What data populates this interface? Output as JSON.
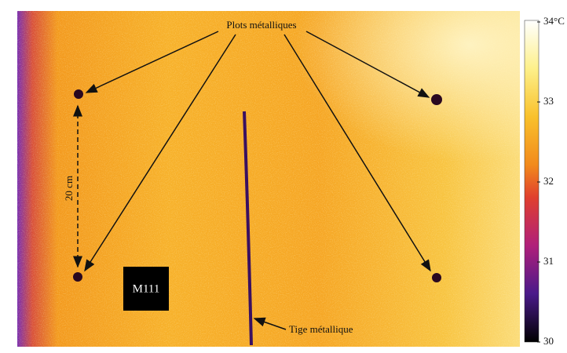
{
  "annotations": {
    "plots": "Plots métalliques",
    "distance": "20 cm",
    "sample": "M111",
    "rod": "Tige métallique"
  },
  "colorbar": {
    "lim": [
      30,
      34
    ],
    "ticks": [
      {
        "value": 34,
        "label": "34°C"
      },
      33,
      32,
      31,
      30
    ]
  }
}
